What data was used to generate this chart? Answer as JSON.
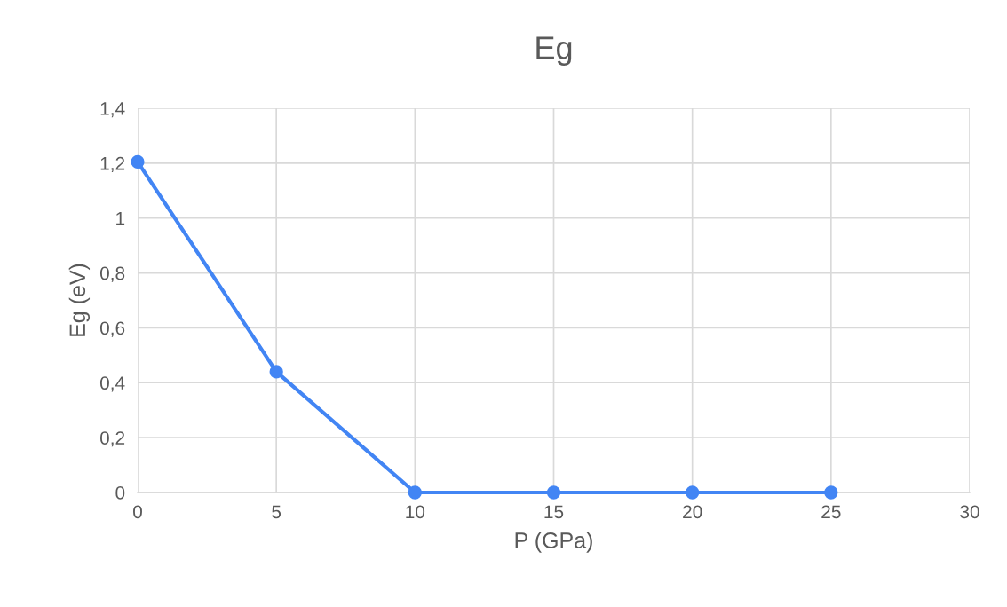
{
  "chart_data": {
    "type": "line",
    "title": "Eg",
    "xlabel": "P (GPa)",
    "ylabel": "Eg (eV)",
    "x": [
      0,
      5,
      10,
      15,
      20,
      25
    ],
    "series": [
      {
        "color": "#4285f4",
        "values": [
          1.205,
          0.44,
          0,
          0,
          0,
          0
        ]
      }
    ],
    "xlim": [
      0,
      30
    ],
    "xticks": [
      0,
      5,
      10,
      15,
      20,
      25,
      30
    ],
    "ylim": [
      0,
      1.4
    ],
    "yticks": [
      0,
      {
        "value": 0.2,
        "label": "0,2"
      },
      {
        "value": 0.4,
        "label": "0,4"
      },
      {
        "value": 0.6,
        "label": "0,6"
      },
      {
        "value": 0.8,
        "label": "0,8"
      },
      1,
      {
        "value": 1.2,
        "label": "1,2"
      },
      {
        "value": 1.4,
        "label": "1,4"
      }
    ],
    "grid": true,
    "marker": "circle",
    "line_style": "solid"
  }
}
